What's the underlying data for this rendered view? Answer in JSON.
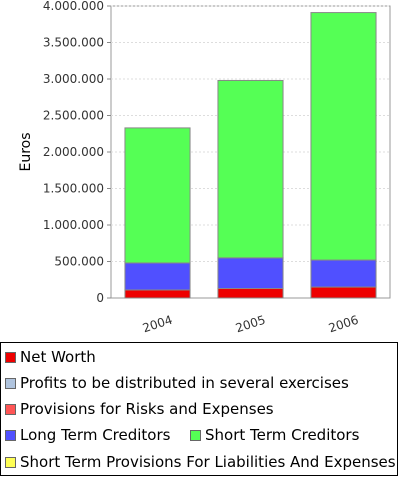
{
  "chart_data": {
    "type": "bar",
    "stacked": true,
    "categories": [
      "2004",
      "2005",
      "2006"
    ],
    "series": [
      {
        "name": "Net Worth",
        "color": "#ee0000",
        "values": [
          110000,
          130000,
          150000
        ]
      },
      {
        "name": "Profits to be distributed in several exercises",
        "color": "#b0c4de",
        "values": [
          0,
          0,
          0
        ]
      },
      {
        "name": "Provisions for Risks and Expenses",
        "color": "#ff5555",
        "values": [
          0,
          0,
          0
        ]
      },
      {
        "name": "Long Term Creditors",
        "color": "#5050ff",
        "values": [
          370000,
          420000,
          370000
        ]
      },
      {
        "name": "Short Term Creditors",
        "color": "#55ff55",
        "values": [
          1850000,
          2430000,
          3390000
        ]
      },
      {
        "name": "Short Term Provisions For Liabilities And Expenses",
        "color": "#ffff55",
        "values": [
          0,
          0,
          0
        ]
      }
    ],
    "ylabel": "Euros",
    "xlabel": "",
    "ylim": [
      0,
      4000000
    ],
    "yticks": [
      0,
      500000,
      1000000,
      1500000,
      2000000,
      2500000,
      3000000,
      3500000,
      4000000
    ],
    "ytick_labels": [
      "0",
      "500.000",
      "1.000.000",
      "1.500.000",
      "2.000.000",
      "2.500.000",
      "3.000.000",
      "3.500.000",
      "4.000.000"
    ],
    "grid": true,
    "legend_position": "bottom"
  }
}
